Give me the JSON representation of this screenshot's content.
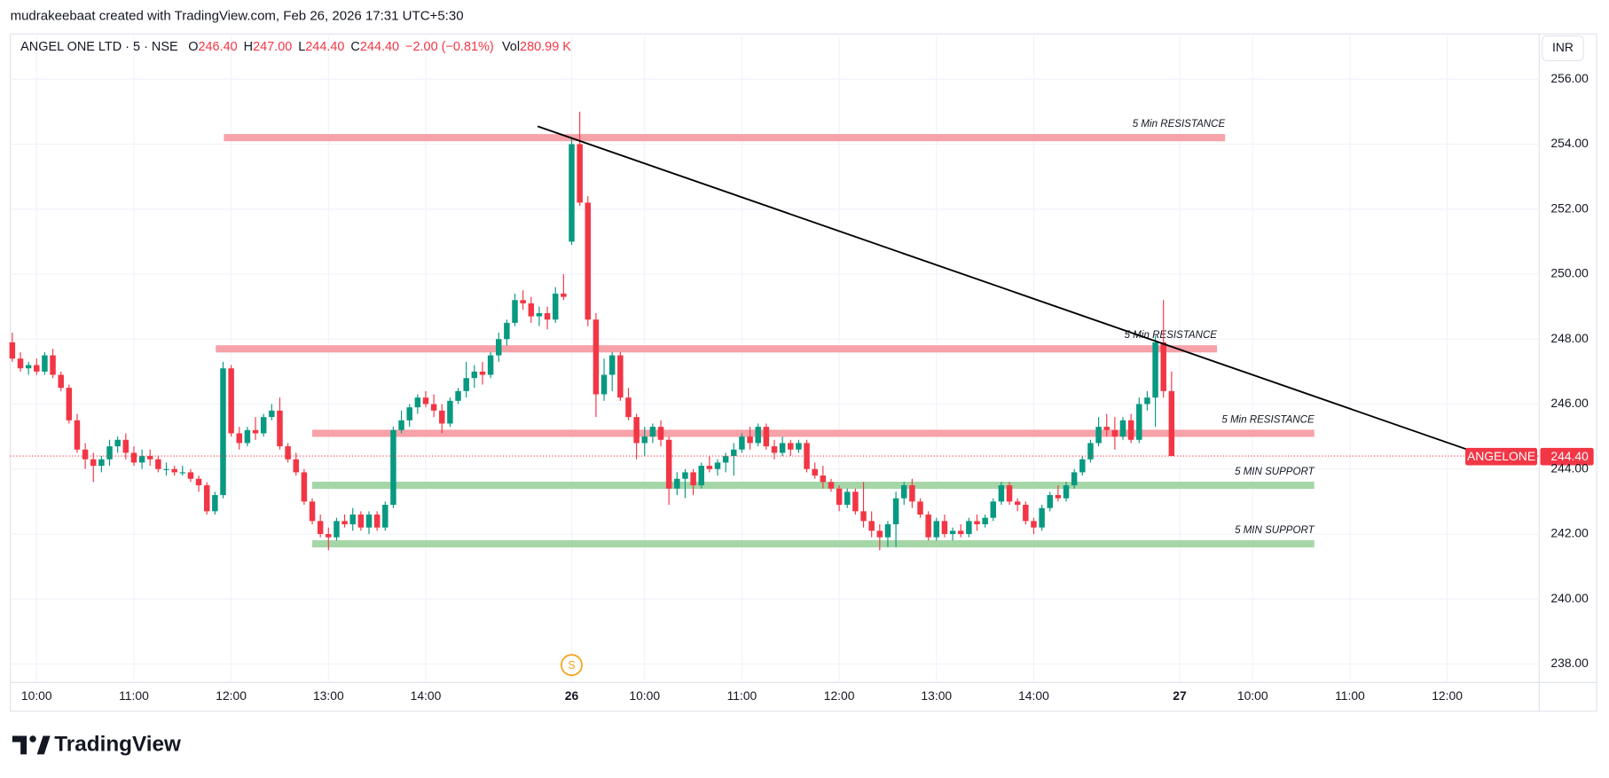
{
  "page": {
    "attribution": "mudrakeebaat created with TradingView.com, Feb 26, 2026 17:31 UTC+5:30",
    "logo": "TradingView"
  },
  "chart_data": {
    "type": "candlestick",
    "symbol": "ANGEL ONE LTD · 5 · NSE",
    "legend_values": [
      {
        "key": "O",
        "value": "246.40"
      },
      {
        "key": "H",
        "value": "247.00"
      },
      {
        "key": "L",
        "value": "244.40"
      },
      {
        "key": "C",
        "value": "244.40"
      }
    ],
    "change": "−2.00 (−0.81%)",
    "volume_key": "Vol",
    "volume": "280.99 K",
    "currency": "INR",
    "colors": {
      "up": "#089981",
      "down": "#f23645"
    },
    "grid": true,
    "ylim": [
      237.43,
      257.33
    ],
    "yticks": [
      {
        "value": 238,
        "label": "238.00"
      },
      {
        "value": 240,
        "label": "240.00"
      },
      {
        "value": 242,
        "label": "242.00"
      },
      {
        "value": 244,
        "label": "244.00"
      },
      {
        "value": 246,
        "label": "246.00"
      },
      {
        "value": 248,
        "label": "248.00"
      },
      {
        "value": 250,
        "label": "250.00"
      },
      {
        "value": 252,
        "label": "252.00"
      },
      {
        "value": 254,
        "label": "254.00"
      },
      {
        "value": 256,
        "label": "256.00"
      }
    ],
    "xlim": [
      -0.25,
      188.35
    ],
    "categories": [
      null,
      null,
      null,
      "10:00",
      null,
      null,
      null,
      null,
      null,
      null,
      null,
      null,
      null,
      null,
      null,
      "11:00",
      null,
      null,
      null,
      null,
      null,
      null,
      null,
      null,
      null,
      null,
      null,
      "12:00",
      null,
      null,
      null,
      null,
      null,
      null,
      null,
      null,
      null,
      null,
      null,
      "13:00",
      null,
      null,
      null,
      null,
      null,
      null,
      null,
      null,
      null,
      null,
      null,
      "14:00",
      null,
      null,
      null,
      null,
      null,
      null,
      null,
      null,
      null,
      null,
      null,
      null,
      null,
      null,
      null,
      null,
      null,
      "26",
      null,
      null,
      null,
      null,
      null,
      null,
      null,
      null,
      "10:00",
      null,
      null,
      null,
      null,
      null,
      null,
      null,
      null,
      null,
      null,
      null,
      "11:00",
      null,
      null,
      null,
      null,
      null,
      null,
      null,
      null,
      null,
      null,
      null,
      "12:00",
      null,
      null,
      null,
      null,
      null,
      null,
      null,
      null,
      null,
      null,
      null,
      "13:00",
      null,
      null,
      null,
      null,
      null,
      null,
      null,
      null,
      null,
      null,
      null,
      "14:00",
      null,
      null,
      null,
      null,
      null,
      null,
      null,
      null,
      null,
      null,
      null,
      null,
      null,
      null,
      null,
      null,
      null,
      "27",
      null,
      null,
      null,
      null,
      null,
      null,
      null,
      null,
      "10:00",
      null,
      null,
      null,
      null,
      null,
      null,
      null,
      null,
      null,
      null,
      null,
      "11:00",
      null,
      null,
      null,
      null,
      null,
      null,
      null,
      null,
      null,
      null,
      null,
      "12:00",
      null,
      null,
      null,
      null,
      null,
      null,
      null,
      null,
      null
    ],
    "ohlc": [
      [
        247.9,
        248.2,
        247.3,
        247.4
      ],
      [
        247.4,
        247.6,
        247.0,
        247.1
      ],
      [
        247.1,
        247.3,
        246.9,
        247.2
      ],
      [
        247.2,
        247.4,
        246.9,
        247.0
      ],
      [
        247.0,
        247.6,
        246.9,
        247.5
      ],
      [
        247.5,
        247.7,
        246.8,
        246.9
      ],
      [
        246.9,
        247.0,
        246.4,
        246.5
      ],
      [
        246.5,
        246.6,
        245.4,
        245.5
      ],
      [
        245.5,
        245.7,
        244.5,
        244.6
      ],
      [
        244.6,
        244.8,
        244.0,
        244.3
      ],
      [
        244.3,
        244.5,
        243.6,
        244.1
      ],
      [
        244.1,
        244.4,
        243.9,
        244.3
      ],
      [
        244.3,
        244.9,
        244.1,
        244.7
      ],
      [
        244.7,
        245.0,
        244.5,
        244.9
      ],
      [
        244.9,
        245.1,
        244.3,
        244.5
      ],
      [
        244.5,
        244.7,
        244.1,
        244.2
      ],
      [
        244.2,
        244.6,
        244.0,
        244.4
      ],
      [
        244.4,
        244.6,
        244.1,
        244.3
      ],
      [
        244.3,
        244.4,
        243.9,
        244.0
      ],
      [
        244.0,
        244.2,
        243.8,
        244.0
      ],
      [
        244.0,
        244.1,
        243.8,
        243.9
      ],
      [
        243.9,
        244.1,
        243.8,
        243.9
      ],
      [
        243.9,
        244.0,
        243.6,
        243.7
      ],
      [
        243.7,
        243.8,
        243.3,
        243.5
      ],
      [
        243.5,
        243.6,
        242.6,
        242.7
      ],
      [
        242.7,
        243.3,
        242.6,
        243.2
      ],
      [
        243.2,
        247.3,
        243.1,
        247.1
      ],
      [
        247.1,
        247.2,
        245.0,
        245.1
      ],
      [
        245.1,
        245.3,
        244.6,
        244.8
      ],
      [
        244.8,
        245.3,
        244.7,
        245.2
      ],
      [
        245.2,
        245.6,
        244.9,
        245.1
      ],
      [
        245.1,
        245.7,
        245.0,
        245.6
      ],
      [
        245.6,
        246.0,
        245.5,
        245.8
      ],
      [
        245.8,
        246.2,
        244.6,
        244.7
      ],
      [
        244.7,
        244.8,
        244.2,
        244.3
      ],
      [
        244.3,
        244.5,
        243.8,
        243.9
      ],
      [
        243.9,
        244.0,
        242.9,
        243.0
      ],
      [
        243.0,
        243.1,
        242.3,
        242.4
      ],
      [
        242.4,
        242.6,
        241.9,
        242.0
      ],
      [
        242.0,
        242.2,
        241.5,
        241.9
      ],
      [
        241.9,
        242.5,
        241.8,
        242.4
      ],
      [
        242.4,
        242.6,
        242.2,
        242.3
      ],
      [
        242.3,
        242.8,
        242.1,
        242.6
      ],
      [
        242.6,
        242.7,
        242.1,
        242.2
      ],
      [
        242.2,
        242.7,
        242.0,
        242.6
      ],
      [
        242.6,
        242.7,
        242.1,
        242.2
      ],
      [
        242.2,
        243.0,
        242.1,
        242.9
      ],
      [
        242.9,
        245.3,
        242.8,
        245.2
      ],
      [
        245.2,
        245.8,
        245.1,
        245.5
      ],
      [
        245.5,
        246.0,
        245.3,
        245.9
      ],
      [
        245.9,
        246.3,
        245.7,
        246.2
      ],
      [
        246.2,
        246.4,
        245.9,
        246.0
      ],
      [
        246.0,
        246.3,
        245.6,
        245.8
      ],
      [
        245.8,
        246.0,
        245.1,
        245.4
      ],
      [
        245.4,
        246.2,
        245.3,
        246.1
      ],
      [
        246.1,
        246.5,
        246.0,
        246.4
      ],
      [
        246.4,
        247.3,
        246.2,
        246.8
      ],
      [
        246.8,
        247.2,
        246.5,
        247.0
      ],
      [
        247.0,
        247.3,
        246.6,
        246.9
      ],
      [
        246.9,
        247.6,
        246.8,
        247.5
      ],
      [
        247.5,
        248.2,
        247.3,
        248.0
      ],
      [
        248.0,
        248.6,
        247.8,
        248.5
      ],
      [
        248.5,
        249.4,
        248.4,
        249.2
      ],
      [
        249.2,
        249.5,
        248.9,
        249.1
      ],
      [
        249.1,
        249.3,
        248.5,
        248.7
      ],
      [
        248.7,
        249.0,
        248.4,
        248.8
      ],
      [
        248.8,
        249.0,
        248.3,
        248.6
      ],
      [
        248.6,
        249.6,
        248.5,
        249.4
      ],
      [
        249.4,
        250.0,
        249.2,
        249.3
      ],
      [
        251.0,
        254.2,
        250.9,
        254.0
      ],
      [
        254.0,
        255.0,
        252.1,
        252.2
      ],
      [
        252.2,
        252.4,
        248.4,
        248.6
      ],
      [
        248.6,
        248.8,
        245.6,
        246.3
      ],
      [
        246.3,
        247.4,
        246.1,
        246.9
      ],
      [
        246.9,
        247.6,
        246.4,
        247.5
      ],
      [
        247.5,
        247.6,
        246.1,
        246.2
      ],
      [
        246.2,
        246.5,
        245.5,
        245.6
      ],
      [
        245.6,
        245.7,
        244.3,
        244.8
      ],
      [
        244.8,
        245.3,
        244.4,
        245.0
      ],
      [
        245.0,
        245.4,
        244.8,
        245.3
      ],
      [
        245.3,
        245.5,
        244.7,
        244.9
      ],
      [
        244.9,
        245.0,
        242.9,
        243.4
      ],
      [
        243.4,
        243.9,
        243.2,
        243.7
      ],
      [
        243.7,
        244.0,
        243.1,
        243.9
      ],
      [
        243.9,
        244.0,
        243.2,
        243.5
      ],
      [
        243.5,
        244.2,
        243.4,
        244.1
      ],
      [
        244.1,
        244.4,
        243.9,
        244.0
      ],
      [
        244.0,
        244.3,
        243.8,
        244.2
      ],
      [
        244.2,
        244.5,
        243.9,
        244.4
      ],
      [
        244.4,
        244.8,
        243.8,
        244.6
      ],
      [
        244.6,
        245.1,
        244.5,
        245.0
      ],
      [
        245.0,
        245.3,
        244.6,
        244.8
      ],
      [
        244.8,
        245.4,
        244.7,
        245.3
      ],
      [
        245.3,
        245.4,
        244.6,
        244.7
      ],
      [
        244.7,
        244.9,
        244.3,
        244.5
      ],
      [
        244.5,
        245.0,
        244.4,
        244.8
      ],
      [
        244.8,
        244.9,
        244.4,
        244.6
      ],
      [
        244.6,
        244.9,
        244.5,
        244.8
      ],
      [
        244.8,
        244.9,
        243.9,
        244.0
      ],
      [
        244.0,
        244.2,
        243.7,
        243.8
      ],
      [
        243.8,
        244.1,
        243.4,
        243.6
      ],
      [
        243.6,
        243.7,
        243.3,
        243.4
      ],
      [
        243.4,
        243.5,
        242.7,
        242.9
      ],
      [
        242.9,
        243.4,
        242.8,
        243.3
      ],
      [
        243.3,
        243.4,
        242.6,
        242.7
      ],
      [
        242.7,
        243.6,
        242.2,
        242.4
      ],
      [
        242.4,
        242.7,
        241.9,
        242.1
      ],
      [
        242.1,
        242.3,
        241.5,
        241.9
      ],
      [
        241.9,
        242.4,
        241.6,
        242.3
      ],
      [
        242.3,
        243.3,
        241.6,
        243.1
      ],
      [
        243.1,
        243.6,
        242.9,
        243.5
      ],
      [
        243.5,
        243.7,
        242.8,
        243.0
      ],
      [
        243.0,
        243.1,
        242.5,
        242.6
      ],
      [
        242.6,
        242.7,
        241.8,
        241.9
      ],
      [
        241.9,
        242.5,
        241.8,
        242.4
      ],
      [
        242.4,
        242.6,
        241.9,
        242.0
      ],
      [
        242.0,
        242.2,
        241.8,
        242.1
      ],
      [
        242.1,
        242.3,
        241.9,
        242.0
      ],
      [
        242.0,
        242.5,
        241.9,
        242.4
      ],
      [
        242.4,
        242.6,
        242.1,
        242.3
      ],
      [
        242.3,
        242.6,
        242.2,
        242.5
      ],
      [
        242.5,
        243.1,
        242.4,
        243.0
      ],
      [
        243.0,
        243.6,
        242.9,
        243.5
      ],
      [
        243.5,
        243.6,
        242.9,
        243.0
      ],
      [
        243.0,
        243.1,
        242.7,
        242.9
      ],
      [
        242.9,
        243.0,
        242.3,
        242.4
      ],
      [
        242.4,
        242.5,
        242.0,
        242.2
      ],
      [
        242.2,
        242.9,
        242.1,
        242.8
      ],
      [
        242.8,
        243.3,
        242.7,
        243.2
      ],
      [
        243.2,
        243.5,
        243.0,
        243.1
      ],
      [
        243.1,
        243.6,
        243.0,
        243.5
      ],
      [
        243.5,
        244.0,
        243.4,
        243.9
      ],
      [
        243.9,
        244.4,
        243.8,
        244.3
      ],
      [
        244.3,
        244.9,
        244.2,
        244.8
      ],
      [
        244.8,
        245.6,
        244.7,
        245.3
      ],
      [
        245.3,
        245.7,
        245.0,
        245.2
      ],
      [
        245.2,
        245.6,
        244.6,
        245.0
      ],
      [
        245.0,
        245.6,
        244.9,
        245.5
      ],
      [
        245.5,
        245.7,
        244.8,
        244.9
      ],
      [
        244.9,
        246.2,
        244.8,
        246.0
      ],
      [
        246.0,
        246.4,
        245.8,
        246.2
      ],
      [
        246.2,
        248.1,
        245.3,
        247.9
      ],
      [
        247.9,
        249.2,
        246.2,
        246.4
      ],
      [
        246.4,
        247.0,
        244.4,
        244.4
      ],
      null,
      null,
      null,
      null,
      null,
      null,
      null,
      null,
      null,
      null,
      null,
      null,
      null,
      null,
      null,
      null,
      null,
      null,
      null,
      null,
      null,
      null,
      null,
      null,
      null,
      null,
      null,
      null,
      null,
      null,
      null,
      null,
      null,
      null,
      null,
      null,
      null,
      null,
      null,
      null,
      null,
      null,
      null
    ],
    "zones": [
      {
        "label": "5 Min RESISTANCE",
        "value": 254.2,
        "start": 26.1,
        "end": 149.6,
        "color": "#f7a1a8"
      },
      {
        "label": "5 Min RESISTANCE",
        "value": 247.7,
        "start": 25.1,
        "end": 148.6,
        "color": "#f7a1a8"
      },
      {
        "label": "5 Min RESISTANCE",
        "value": 245.1,
        "start": 37,
        "end": 160.6,
        "color": "#f7a1a8"
      },
      {
        "label": "5 MIN SUPPORT",
        "value": 243.5,
        "start": 37,
        "end": 160.6,
        "color": "#a5d6a7"
      },
      {
        "label": "5 MIN SUPPORT",
        "value": 241.7,
        "start": 37,
        "end": 160.6,
        "color": "#a5d6a7"
      }
    ],
    "trendline": {
      "from": [
        64.8,
        254.55
      ],
      "to": [
        179.5,
        244.6
      ],
      "color": "#000000"
    },
    "session_marker": {
      "label": "S",
      "index": 69,
      "color": "#f7a21b"
    },
    "last_price": {
      "ticker": "ANGELONE",
      "value": 244.4,
      "label": "244.40"
    }
  }
}
